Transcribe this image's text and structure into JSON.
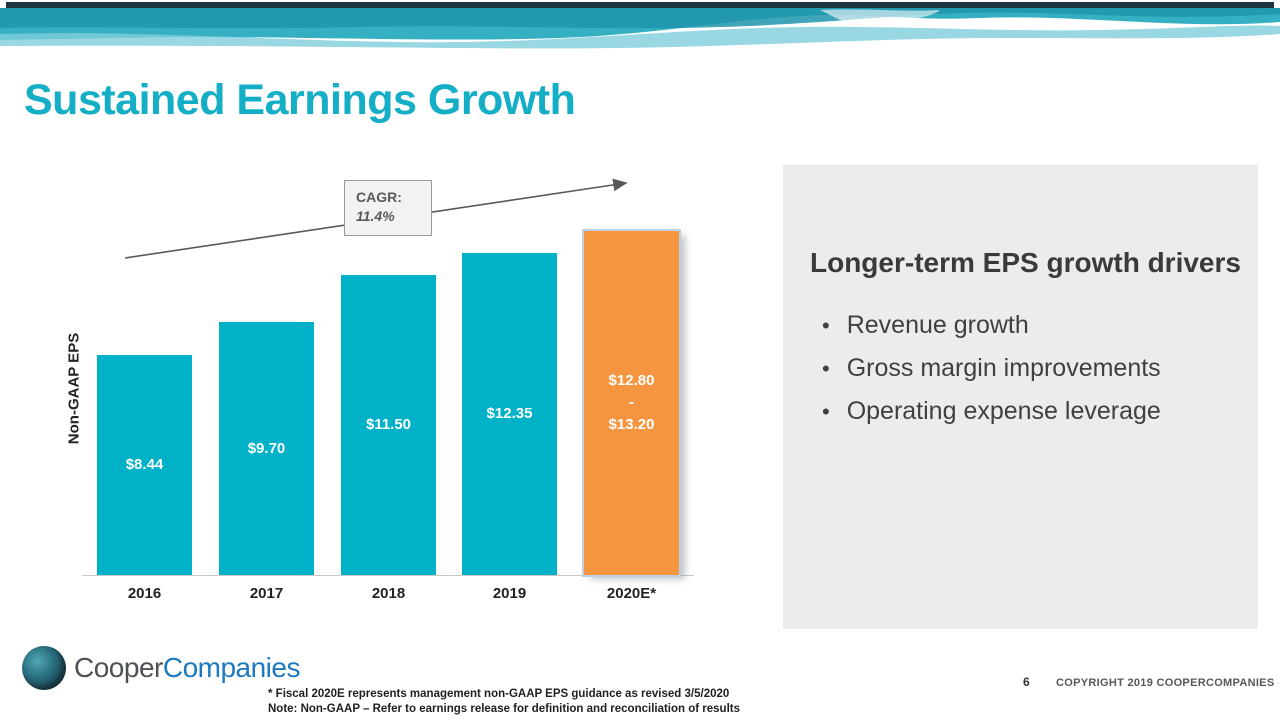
{
  "slide": {
    "title": "Sustained Earnings Growth",
    "page_number": "6",
    "copyright": "COPYRIGHT 2019 COOPERCOMPANIES",
    "footnote1": "* Fiscal 2020E represents management non-GAAP EPS guidance as revised 3/5/2020",
    "footnote2": "Note:  Non-GAAP – Refer to earnings release for definition and reconciliation of results",
    "logo": {
      "cooper": "Cooper",
      "companies": "Companies"
    }
  },
  "chart_data": {
    "type": "bar",
    "title": "",
    "xlabel": "",
    "ylabel": "Non-GAAP EPS",
    "categories": [
      "2016",
      "2017",
      "2018",
      "2019",
      "2020E*"
    ],
    "values": [
      8.44,
      9.7,
      11.5,
      12.35,
      13.2
    ],
    "guidance_range_2020E": [
      12.8,
      13.2
    ],
    "bar_labels": [
      [
        "$8.44"
      ],
      [
        "$9.70"
      ],
      [
        "$11.50"
      ],
      [
        "$12.35"
      ],
      [
        "$12.80",
        "-",
        "$13.20"
      ]
    ],
    "highlight_index": 4,
    "annotation": {
      "label": "CAGR:",
      "value": "11.4%"
    },
    "colors": {
      "bar": "#00B1C8",
      "highlight_bar": "#F6953F",
      "arrow": "#595959"
    },
    "ylim": [
      0,
      14
    ],
    "grid": false,
    "legend": "none"
  },
  "panel": {
    "heading": "Longer-term EPS growth drivers",
    "bullets": [
      "Revenue growth",
      "Gross margin improvements",
      "Operating expense leverage"
    ]
  }
}
